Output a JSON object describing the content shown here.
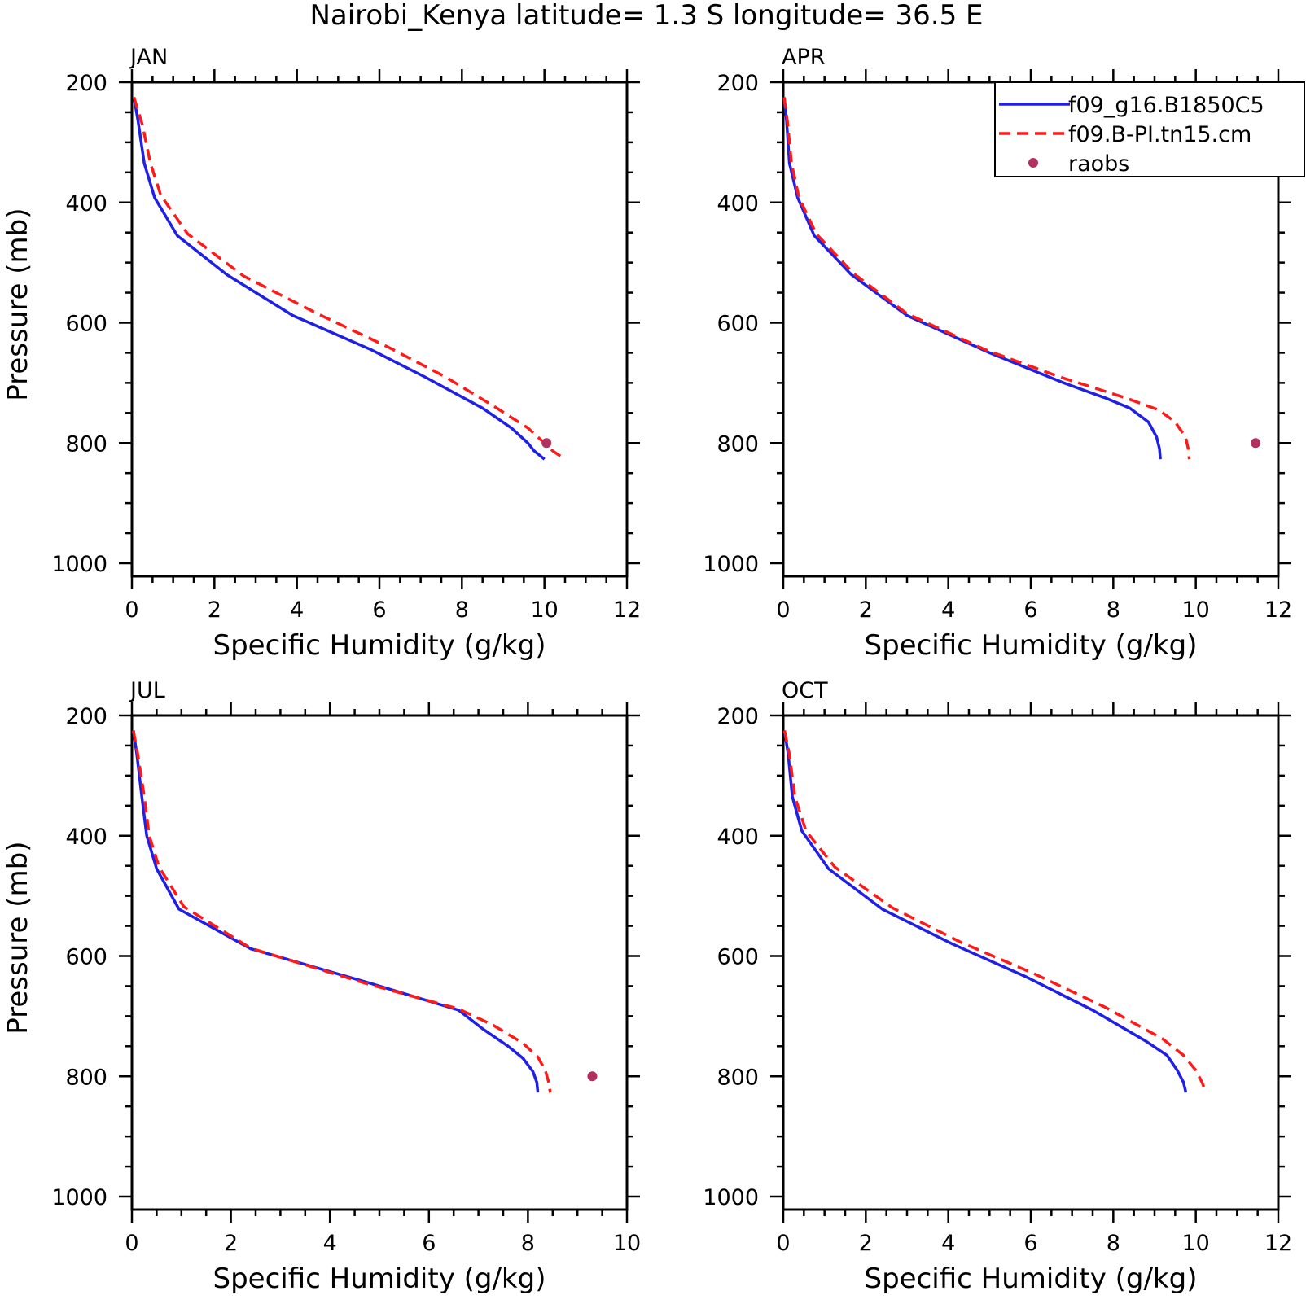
{
  "title": "Nairobi_Kenya  latitude= 1.3 S longitude= 36.5 E",
  "legend": {
    "placement": "top-right",
    "entries": [
      {
        "label": "f09_g16.B1850C5",
        "style": "solid",
        "color": "#1f1fe6"
      },
      {
        "label": "f09.B-PI.tn15.cm",
        "style": "dashed",
        "color": "#ff1a1a"
      },
      {
        "label": "raobs",
        "style": "marker",
        "color": "#b03060"
      }
    ]
  },
  "chart_data": [
    {
      "type": "line",
      "panel_title": "JAN",
      "xlabel": "Specific Humidity (g/kg)",
      "ylabel": "Pressure (mb)",
      "xlim": [
        0,
        12
      ],
      "ylim": [
        1000,
        200
      ],
      "xticks": [
        0,
        2,
        4,
        6,
        8,
        10,
        12
      ],
      "yticks": [
        200,
        400,
        600,
        800,
        1000
      ],
      "series": [
        {
          "name": "f09_g16.B1850C5",
          "color": "#1f1fe6",
          "style": "solid",
          "points": [
            [
              0.05,
              225
            ],
            [
              0.15,
              265
            ],
            [
              0.3,
              335
            ],
            [
              0.55,
              392
            ],
            [
              1.1,
              455
            ],
            [
              2.3,
              520
            ],
            [
              3.9,
              588
            ],
            [
              5.8,
              645
            ],
            [
              7.1,
              690
            ],
            [
              8.5,
              742
            ],
            [
              9.2,
              775
            ],
            [
              9.6,
              800
            ],
            [
              9.75,
              813
            ],
            [
              10.0,
              827
            ]
          ]
        },
        {
          "name": "f09.B-PI.tn15.cm",
          "color": "#ff1a1a",
          "style": "dashed",
          "points": [
            [
              0.05,
              225
            ],
            [
              0.25,
              270
            ],
            [
              0.45,
              335
            ],
            [
              0.7,
              388
            ],
            [
              1.35,
              452
            ],
            [
              2.7,
              522
            ],
            [
              4.5,
              585
            ],
            [
              6.2,
              640
            ],
            [
              7.6,
              690
            ],
            [
              8.8,
              740
            ],
            [
              9.6,
              775
            ],
            [
              10.0,
              800
            ],
            [
              10.2,
              813
            ],
            [
              10.5,
              827
            ]
          ]
        },
        {
          "name": "raobs",
          "color": "#b03060",
          "style": "marker",
          "points": [
            [
              10.05,
              800
            ]
          ]
        }
      ]
    },
    {
      "type": "line",
      "panel_title": "APR",
      "xlabel": "Specific Humidity (g/kg)",
      "ylabel": "",
      "xlim": [
        0,
        12
      ],
      "ylim": [
        1000,
        200
      ],
      "xticks": [
        0,
        2,
        4,
        6,
        8,
        10,
        12
      ],
      "yticks": [
        200,
        400,
        600,
        800,
        1000
      ],
      "series": [
        {
          "name": "f09_g16.B1850C5",
          "color": "#1f1fe6",
          "style": "solid",
          "points": [
            [
              0.02,
              225
            ],
            [
              0.08,
              265
            ],
            [
              0.15,
              335
            ],
            [
              0.35,
              392
            ],
            [
              0.75,
              455
            ],
            [
              1.65,
              520
            ],
            [
              3.0,
              588
            ],
            [
              5.0,
              650
            ],
            [
              6.8,
              700
            ],
            [
              7.8,
              725
            ],
            [
              8.4,
              742
            ],
            [
              8.85,
              765
            ],
            [
              9.05,
              790
            ],
            [
              9.12,
              810
            ],
            [
              9.14,
              827
            ]
          ]
        },
        {
          "name": "f09.B-PI.tn15.cm",
          "color": "#ff1a1a",
          "style": "dashed",
          "points": [
            [
              0.02,
              225
            ],
            [
              0.1,
              265
            ],
            [
              0.2,
              335
            ],
            [
              0.38,
              392
            ],
            [
              0.8,
              452
            ],
            [
              1.7,
              518
            ],
            [
              3.0,
              585
            ],
            [
              4.9,
              645
            ],
            [
              6.7,
              690
            ],
            [
              8.3,
              725
            ],
            [
              9.1,
              745
            ],
            [
              9.5,
              765
            ],
            [
              9.75,
              790
            ],
            [
              9.82,
              810
            ],
            [
              9.84,
              827
            ]
          ]
        },
        {
          "name": "raobs",
          "color": "#b03060",
          "style": "marker",
          "points": [
            [
              11.45,
              800
            ]
          ]
        }
      ]
    },
    {
      "type": "line",
      "panel_title": "JUL",
      "xlabel": "Specific Humidity (g/kg)",
      "ylabel": "Pressure (mb)",
      "xlim": [
        0,
        10
      ],
      "ylim": [
        1000,
        200
      ],
      "xticks": [
        0,
        2,
        4,
        6,
        8,
        10
      ],
      "yticks": [
        200,
        400,
        600,
        800,
        1000
      ],
      "series": [
        {
          "name": "f09_g16.B1850C5",
          "color": "#1f1fe6",
          "style": "solid",
          "points": [
            [
              0.03,
              225
            ],
            [
              0.1,
              265
            ],
            [
              0.2,
              335
            ],
            [
              0.3,
              400
            ],
            [
              0.5,
              455
            ],
            [
              0.95,
              522
            ],
            [
              2.4,
              588
            ],
            [
              4.8,
              645
            ],
            [
              6.6,
              690
            ],
            [
              7.1,
              722
            ],
            [
              7.6,
              750
            ],
            [
              7.9,
              770
            ],
            [
              8.1,
              792
            ],
            [
              8.18,
              810
            ],
            [
              8.2,
              827
            ]
          ]
        },
        {
          "name": "f09.B-PI.tn15.cm",
          "color": "#ff1a1a",
          "style": "dashed",
          "points": [
            [
              0.03,
              225
            ],
            [
              0.12,
              265
            ],
            [
              0.25,
              335
            ],
            [
              0.35,
              400
            ],
            [
              0.55,
              452
            ],
            [
              1.05,
              518
            ],
            [
              2.4,
              587
            ],
            [
              4.7,
              645
            ],
            [
              6.6,
              688
            ],
            [
              7.3,
              715
            ],
            [
              7.9,
              745
            ],
            [
              8.2,
              768
            ],
            [
              8.35,
              790
            ],
            [
              8.42,
              810
            ],
            [
              8.45,
              827
            ]
          ]
        },
        {
          "name": "raobs",
          "color": "#b03060",
          "style": "marker",
          "points": [
            [
              9.3,
              800
            ]
          ]
        }
      ]
    },
    {
      "type": "line",
      "panel_title": "OCT",
      "xlabel": "Specific Humidity (g/kg)",
      "ylabel": "",
      "xlim": [
        0,
        12
      ],
      "ylim": [
        1000,
        200
      ],
      "xticks": [
        0,
        2,
        4,
        6,
        8,
        10,
        12
      ],
      "yticks": [
        200,
        400,
        600,
        800,
        1000
      ],
      "series": [
        {
          "name": "f09_g16.B1850C5",
          "color": "#1f1fe6",
          "style": "solid",
          "points": [
            [
              0.03,
              225
            ],
            [
              0.12,
              265
            ],
            [
              0.22,
              335
            ],
            [
              0.45,
              392
            ],
            [
              1.1,
              455
            ],
            [
              2.4,
              522
            ],
            [
              4.1,
              580
            ],
            [
              5.9,
              635
            ],
            [
              7.5,
              690
            ],
            [
              8.8,
              742
            ],
            [
              9.3,
              765
            ],
            [
              9.55,
              790
            ],
            [
              9.7,
              810
            ],
            [
              9.76,
              827
            ]
          ]
        },
        {
          "name": "f09.B-PI.tn15.cm",
          "color": "#ff1a1a",
          "style": "dashed",
          "points": [
            [
              0.03,
              225
            ],
            [
              0.15,
              265
            ],
            [
              0.28,
              335
            ],
            [
              0.55,
              392
            ],
            [
              1.25,
              452
            ],
            [
              2.65,
              520
            ],
            [
              4.3,
              577
            ],
            [
              6.1,
              630
            ],
            [
              7.8,
              685
            ],
            [
              9.2,
              738
            ],
            [
              9.7,
              765
            ],
            [
              10.0,
              790
            ],
            [
              10.15,
              810
            ],
            [
              10.25,
              827
            ]
          ]
        }
      ]
    }
  ]
}
